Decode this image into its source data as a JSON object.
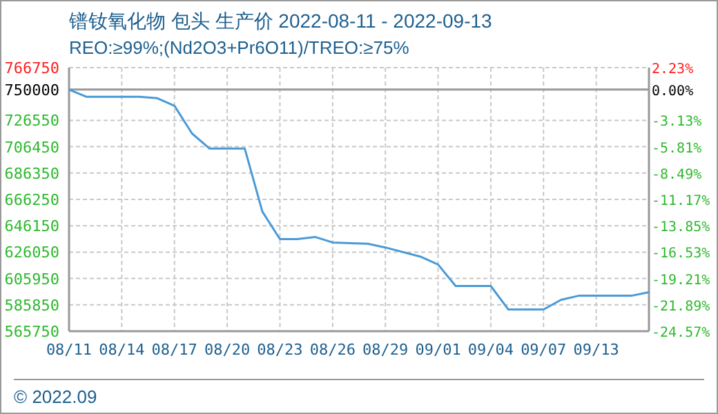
{
  "chart_data": {
    "type": "line",
    "title": "镨钕氧化物 包头 生产价 2022-08-11 - 2022-09-13",
    "subtitle": "REO:≥99%;(Nd2O3+Pr6O11)/TREO:≥75%",
    "x": [
      "2022-08-11",
      "2022-08-12",
      "2022-08-15",
      "2022-08-16",
      "2022-08-17",
      "2022-08-18",
      "2022-08-19",
      "2022-08-21",
      "2022-08-22",
      "2022-08-23",
      "2022-08-24",
      "2022-08-25",
      "2022-08-26",
      "2022-08-28",
      "2022-08-29",
      "2022-08-31",
      "2022-09-01",
      "2022-09-02",
      "2022-09-04",
      "2022-09-05",
      "2022-09-07",
      "2022-09-08",
      "2022-09-09",
      "2022-09-12",
      "2022-09-13"
    ],
    "series": [
      {
        "color": "#4a9ad6",
        "values": [
          750000,
          744500,
          744500,
          743500,
          737600,
          716500,
          705000,
          705000,
          657000,
          636000,
          636000,
          637600,
          633400,
          632400,
          629600,
          622600,
          616600,
          600200,
          600200,
          582300,
          582300,
          589700,
          592800,
          592800,
          595500
        ]
      }
    ],
    "xlim": [
      "2022-08-11",
      "2022-09-13"
    ],
    "xticks": [
      {
        "value": "2022-08-11",
        "label": "08/11"
      },
      {
        "value": "2022-08-14",
        "label": "08/14"
      },
      {
        "value": "2022-08-17",
        "label": "08/17"
      },
      {
        "value": "2022-08-20",
        "label": "08/20"
      },
      {
        "value": "2022-08-23",
        "label": "08/23"
      },
      {
        "value": "2022-08-26",
        "label": "08/26"
      },
      {
        "value": "2022-08-29",
        "label": "08/29"
      },
      {
        "value": "2022-09-01",
        "label": "09/01"
      },
      {
        "value": "2022-09-04",
        "label": "09/04"
      },
      {
        "value": "2022-09-07",
        "label": "09/07"
      },
      {
        "value": "2022-09-10",
        "label": "09/13"
      }
    ],
    "ylim": [
      565750,
      766750
    ],
    "yticks": [
      565750,
      585850,
      605950,
      626050,
      646150,
      666250,
      686350,
      706450,
      726550,
      750000,
      766750
    ],
    "y2lim": [
      -24.57,
      2.23
    ],
    "y2ticks": [
      {
        "value": -24.57,
        "label": "-24.57%"
      },
      {
        "value": -21.89,
        "label": "-21.89%"
      },
      {
        "value": -19.21,
        "label": "-19.21%"
      },
      {
        "value": -16.53,
        "label": "-16.53%"
      },
      {
        "value": -13.85,
        "label": "-13.85%"
      },
      {
        "value": -11.17,
        "label": "-11.17%"
      },
      {
        "value": -8.49,
        "label": "-8.49%"
      },
      {
        "value": -5.81,
        "label": "-5.81%"
      },
      {
        "value": -3.13,
        "label": "-3.13%"
      },
      {
        "value": 0,
        "label": "0.00%"
      },
      {
        "value": 2.23,
        "label": "2.23%"
      }
    ],
    "ref_lines": [
      {
        "axis": "y",
        "value": 750000,
        "color": "#999999"
      }
    ],
    "grid": true,
    "annotations": [
      "© 2022.09"
    ]
  }
}
